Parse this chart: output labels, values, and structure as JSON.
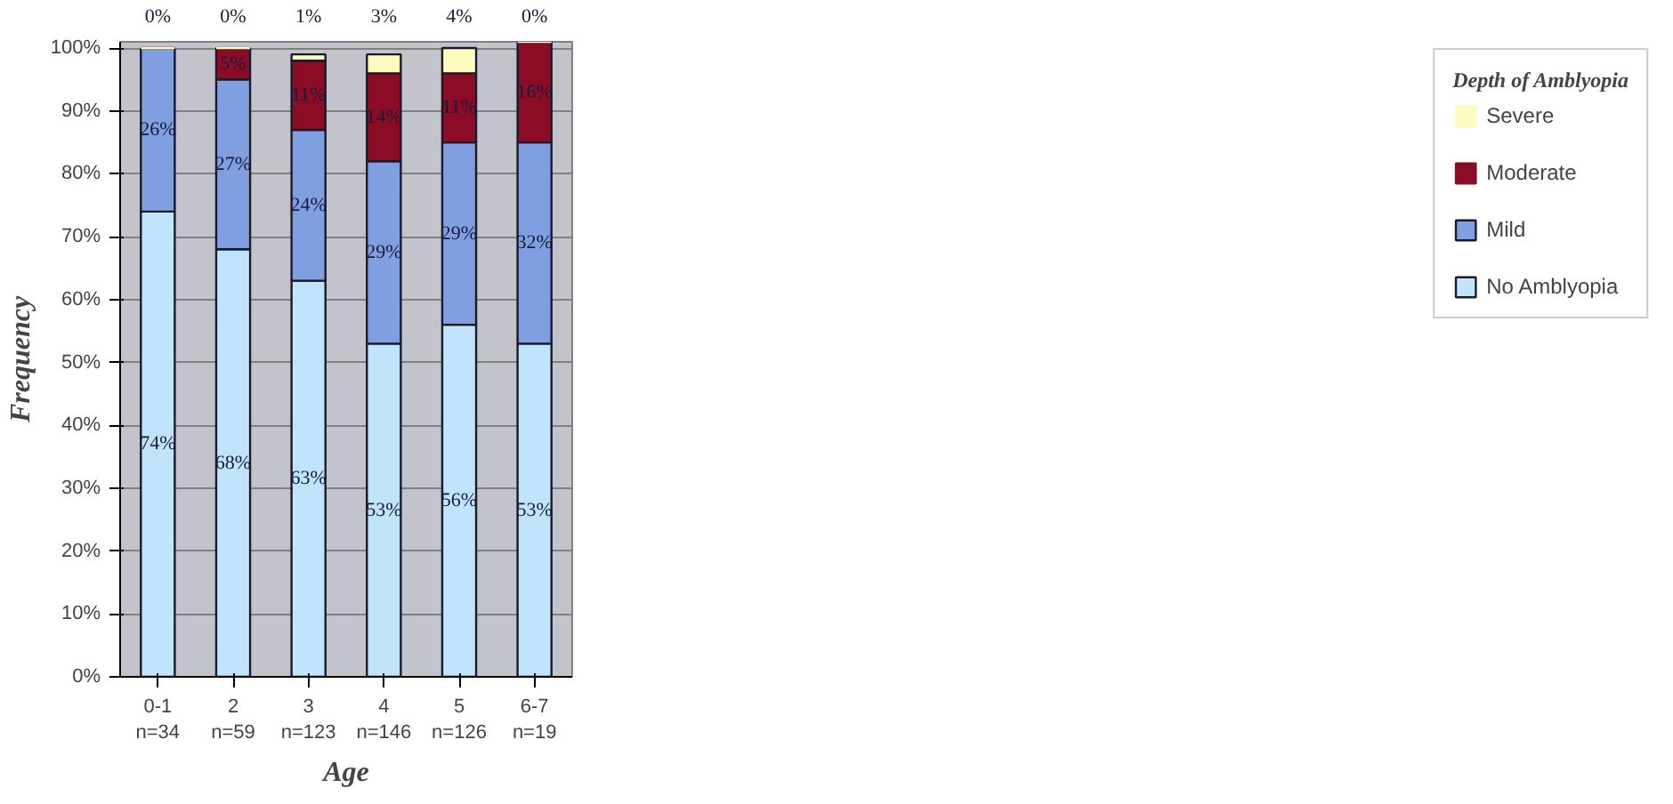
{
  "chart_data": {
    "type": "bar",
    "stacked": true,
    "xlabel": "Age",
    "ylabel": "Frequency",
    "legend_title": "Depth of Amblyopia",
    "categories": [
      "0-1\nn=34",
      "2\nn=59",
      "3\nn=123",
      "4\nn=146",
      "5\nn=126",
      "6-7\nn=19"
    ],
    "series": [
      {
        "name": "No Amblyopia",
        "color": "#bfe4fb",
        "values": [
          74,
          68,
          63,
          53,
          56,
          53
        ],
        "value_labels": [
          "74%",
          "68%",
          "63%",
          "53%",
          "56%",
          "53%"
        ]
      },
      {
        "name": "Mild",
        "color": "#7f9fe0",
        "values": [
          26,
          27,
          24,
          29,
          29,
          32
        ],
        "value_labels": [
          "26%",
          "27%",
          "24%",
          "29%",
          "29%",
          "32%"
        ]
      },
      {
        "name": "Moderate",
        "color": "#8b0d25",
        "values": [
          0,
          5,
          11,
          14,
          11,
          16
        ],
        "value_labels": [
          null,
          "5%",
          "11%",
          "14%",
          "11%",
          "16%"
        ]
      },
      {
        "name": "Severe",
        "color": "#fdfbc0",
        "values": [
          0,
          0,
          1,
          3,
          4,
          0
        ],
        "value_labels": [
          "0%",
          "0%",
          "1%",
          "3%",
          "4%",
          "0%"
        ]
      }
    ],
    "ylim": [
      0,
      101
    ],
    "yticks": [
      {
        "value": 0,
        "label": "0%"
      },
      {
        "value": 10,
        "label": "10%"
      },
      {
        "value": 20,
        "label": "20%"
      },
      {
        "value": 30,
        "label": "30%"
      },
      {
        "value": 40,
        "label": "40%"
      },
      {
        "value": 50,
        "label": "50%"
      },
      {
        "value": 60,
        "label": "60%"
      },
      {
        "value": 70,
        "label": "70%"
      },
      {
        "value": 80,
        "label": "80%"
      },
      {
        "value": 90,
        "label": "90%"
      },
      {
        "value": 100,
        "label": "100%"
      }
    ],
    "grid": "y",
    "legend": "right"
  }
}
